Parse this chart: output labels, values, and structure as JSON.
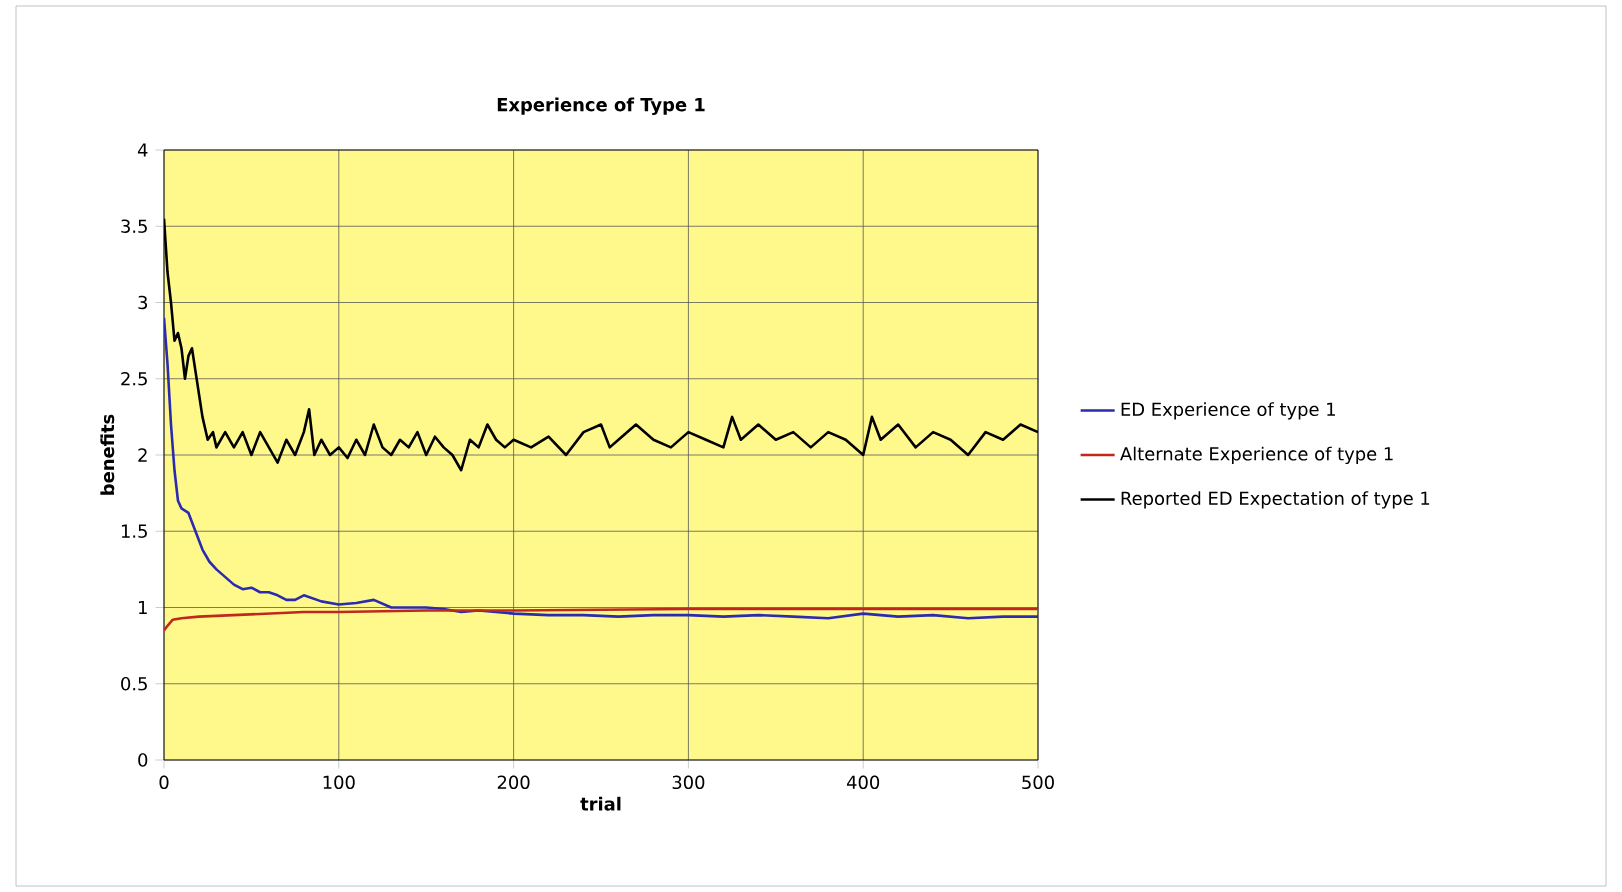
{
  "chart_data": {
    "type": "line",
    "title": "Experience of Type 1",
    "xlabel": "trial",
    "ylabel": "benefits",
    "xlim": [
      0,
      500
    ],
    "xticks": [
      0,
      100,
      200,
      300,
      400,
      500
    ],
    "ylim": [
      0,
      4
    ],
    "yticks": [
      0,
      0.5,
      1,
      1.5,
      2,
      2.5,
      3,
      3.5,
      4
    ],
    "grid": true,
    "legend": "right",
    "marker": "none",
    "line_style": "solid",
    "series": [
      {
        "name": "ED Experience of type 1",
        "color": "#2b2bb0",
        "x": [
          0,
          2,
          4,
          6,
          8,
          10,
          14,
          18,
          22,
          26,
          30,
          35,
          40,
          45,
          50,
          55,
          60,
          65,
          70,
          75,
          80,
          90,
          100,
          110,
          120,
          130,
          140,
          150,
          160,
          170,
          180,
          200,
          220,
          240,
          260,
          280,
          300,
          320,
          340,
          360,
          380,
          400,
          420,
          440,
          460,
          480,
          500
        ],
        "values": [
          2.9,
          2.6,
          2.2,
          1.9,
          1.7,
          1.65,
          1.62,
          1.5,
          1.38,
          1.3,
          1.25,
          1.2,
          1.15,
          1.12,
          1.13,
          1.1,
          1.1,
          1.08,
          1.05,
          1.05,
          1.08,
          1.04,
          1.02,
          1.03,
          1.05,
          1.0,
          1.0,
          1.0,
          0.99,
          0.97,
          0.98,
          0.96,
          0.95,
          0.95,
          0.94,
          0.95,
          0.95,
          0.94,
          0.95,
          0.94,
          0.93,
          0.96,
          0.94,
          0.95,
          0.93,
          0.94,
          0.94
        ]
      },
      {
        "name": "Alternate Experience of type 1",
        "color": "#c0281e",
        "x": [
          0,
          2,
          5,
          10,
          20,
          40,
          60,
          80,
          100,
          150,
          200,
          300,
          400,
          500
        ],
        "values": [
          0.85,
          0.88,
          0.92,
          0.93,
          0.94,
          0.95,
          0.96,
          0.97,
          0.97,
          0.98,
          0.98,
          0.99,
          0.99,
          0.99
        ]
      },
      {
        "name": "Reported ED Expectation of type 1",
        "color": "#000000",
        "x": [
          0,
          2,
          4,
          6,
          8,
          10,
          12,
          14,
          16,
          18,
          20,
          22,
          25,
          28,
          30,
          35,
          40,
          45,
          50,
          55,
          60,
          65,
          70,
          75,
          80,
          83,
          86,
          90,
          95,
          100,
          105,
          110,
          115,
          120,
          125,
          130,
          135,
          140,
          145,
          150,
          155,
          160,
          165,
          170,
          175,
          180,
          185,
          190,
          195,
          200,
          210,
          220,
          230,
          240,
          250,
          255,
          260,
          270,
          280,
          290,
          300,
          310,
          320,
          325,
          330,
          340,
          350,
          360,
          370,
          380,
          390,
          400,
          405,
          410,
          420,
          430,
          440,
          450,
          460,
          470,
          480,
          490,
          500
        ],
        "values": [
          3.55,
          3.2,
          3.0,
          2.75,
          2.8,
          2.7,
          2.5,
          2.65,
          2.7,
          2.55,
          2.4,
          2.25,
          2.1,
          2.15,
          2.05,
          2.15,
          2.05,
          2.15,
          2.0,
          2.15,
          2.05,
          1.95,
          2.1,
          2.0,
          2.15,
          2.3,
          2.0,
          2.1,
          2.0,
          2.05,
          1.98,
          2.1,
          2.0,
          2.2,
          2.05,
          2.0,
          2.1,
          2.05,
          2.15,
          2.0,
          2.12,
          2.05,
          2.0,
          1.9,
          2.1,
          2.05,
          2.2,
          2.1,
          2.05,
          2.1,
          2.05,
          2.12,
          2.0,
          2.15,
          2.2,
          2.05,
          2.1,
          2.2,
          2.1,
          2.05,
          2.15,
          2.1,
          2.05,
          2.25,
          2.1,
          2.2,
          2.1,
          2.15,
          2.05,
          2.15,
          2.1,
          2.0,
          2.25,
          2.1,
          2.2,
          2.05,
          2.15,
          2.1,
          2.0,
          2.15,
          2.1,
          2.2,
          2.15
        ]
      }
    ]
  }
}
